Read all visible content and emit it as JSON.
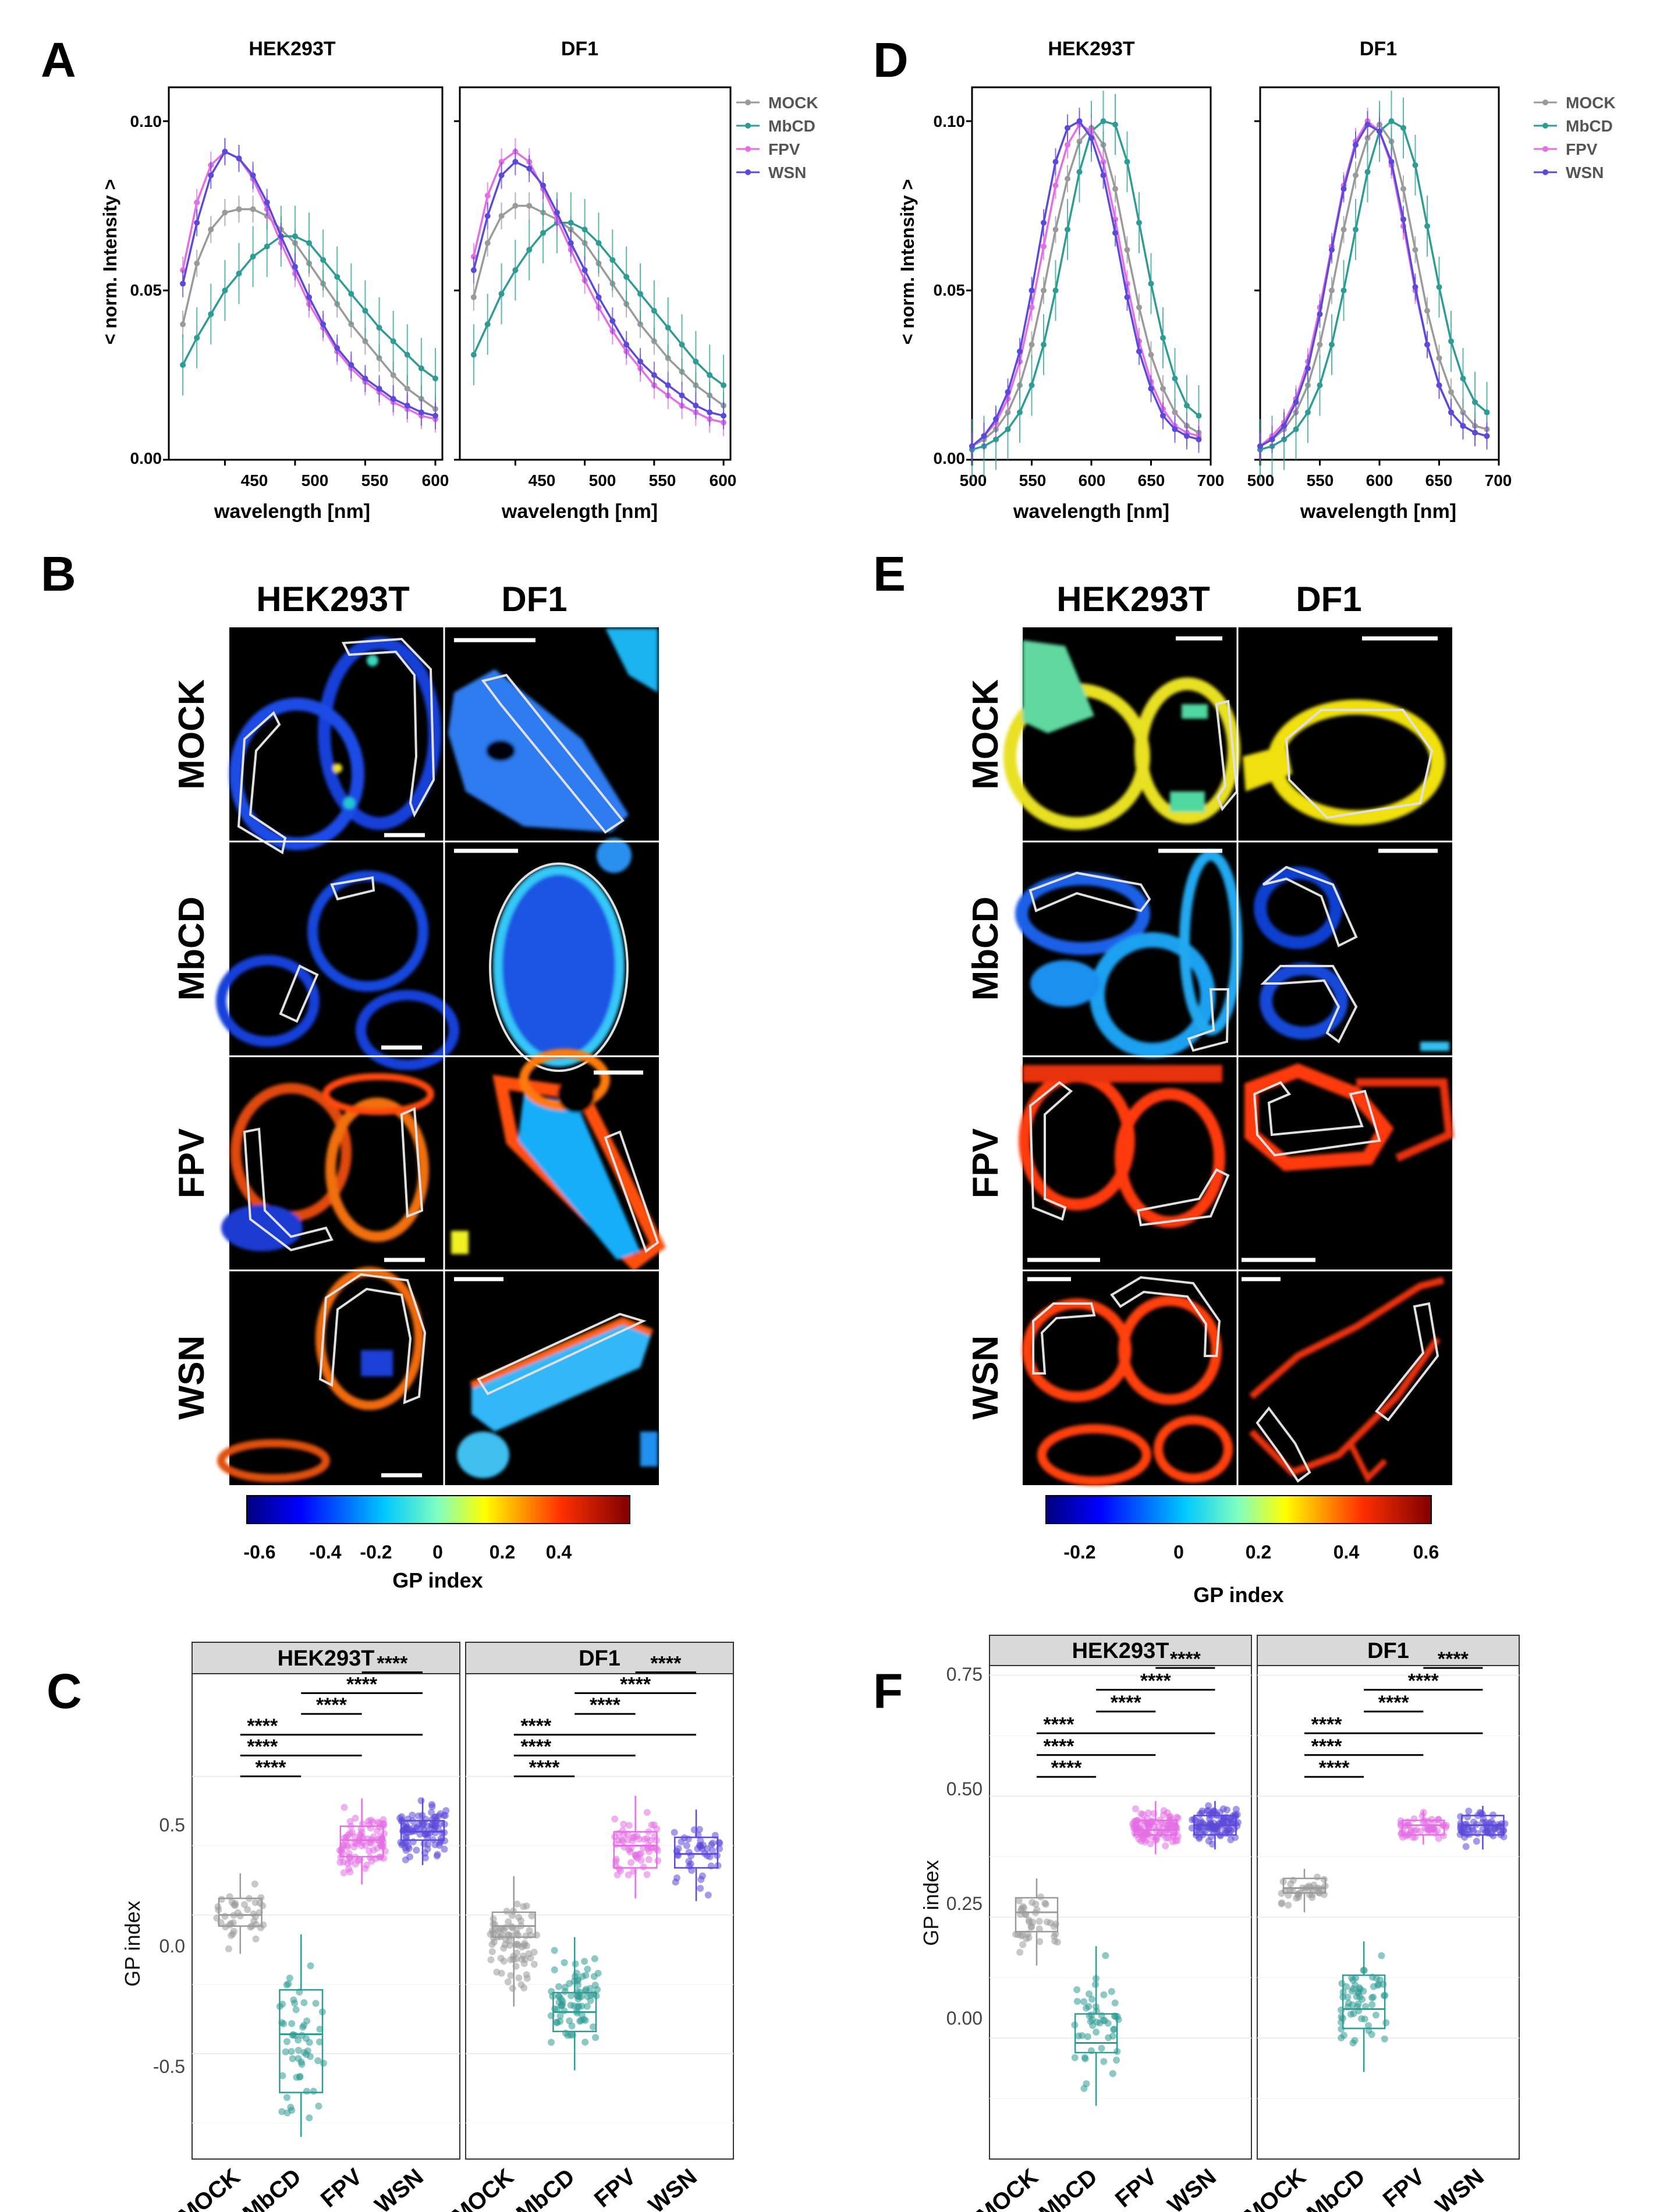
{
  "panels": {
    "A": {
      "letter": "A",
      "ylabel": "< norm. Intensity >",
      "xlabel": "wavelength [nm]",
      "legend": [
        "MOCK",
        "MbCD",
        "FPV",
        "WSN"
      ],
      "titles": [
        "HEK293T",
        "DF1"
      ],
      "xticks": [
        "450",
        "500",
        "550",
        "600"
      ],
      "yticks": [
        "0.00",
        "0.05",
        "0.10"
      ]
    },
    "B": {
      "letter": "B",
      "cols": [
        "HEK293T",
        "DF1"
      ],
      "rows": [
        "MOCK",
        "MbCD",
        "FPV",
        "WSN"
      ],
      "colorbar_ticks": [
        "-0.6",
        "-0.4",
        "-0.2",
        "0",
        "0.2",
        "0.4"
      ],
      "colorbar_label": "GP index"
    },
    "C": {
      "letter": "C",
      "strips": [
        "HEK293T",
        "DF1"
      ],
      "ylabel": "GP index",
      "yticks": [
        "0.5",
        "0.0",
        "-0.5"
      ],
      "xticks": [
        "MOCK",
        "MbCD",
        "FPV",
        "WSN"
      ],
      "sig": "****"
    },
    "D": {
      "letter": "D",
      "ylabel": "< norm. Intensity >",
      "xlabel": "wavelength [nm]",
      "legend": [
        "MOCK",
        "MbCD",
        "FPV",
        "WSN"
      ],
      "titles": [
        "HEK293T",
        "DF1"
      ],
      "xticks": [
        "500",
        "550",
        "600",
        "650",
        "700"
      ],
      "yticks": [
        "0.00",
        "0.05",
        "0.10"
      ]
    },
    "E": {
      "letter": "E",
      "cols": [
        "HEK293T",
        "DF1"
      ],
      "rows": [
        "MOCK",
        "MbCD",
        "FPV",
        "WSN"
      ],
      "colorbar_ticks": [
        "-0.2",
        "0",
        "0.2",
        "0.4",
        "0.6"
      ],
      "colorbar_label": "GP index"
    },
    "F": {
      "letter": "F",
      "strips": [
        "HEK293T",
        "DF1"
      ],
      "ylabel": "GP index",
      "yticks": [
        "0.75",
        "0.50",
        "0.25",
        "0.00"
      ],
      "xticks": [
        "MOCK",
        "MbCD",
        "FPV",
        "WSN"
      ],
      "sig": "****"
    }
  },
  "colors": {
    "MOCK": "#9a9a9a",
    "MbCD": "#2e9b94",
    "FPV": "#e46ee4",
    "WSN": "#5b49d8"
  },
  "chart_data": [
    {
      "id": "A-HEK293T",
      "type": "line",
      "title": "HEK293T",
      "xlabel": "wavelength [nm]",
      "ylabel": "< norm. Intensity >",
      "xlim": [
        410,
        605
      ],
      "ylim": [
        0,
        0.11
      ],
      "x": [
        420,
        430,
        440,
        450,
        460,
        470,
        480,
        490,
        500,
        510,
        520,
        530,
        540,
        550,
        560,
        570,
        580,
        590,
        600
      ],
      "series": [
        {
          "name": "MOCK",
          "values": [
            0.04,
            0.058,
            0.068,
            0.073,
            0.074,
            0.074,
            0.072,
            0.068,
            0.064,
            0.058,
            0.052,
            0.046,
            0.04,
            0.035,
            0.03,
            0.025,
            0.021,
            0.018,
            0.015
          ]
        },
        {
          "name": "MbCD",
          "values": [
            0.028,
            0.036,
            0.043,
            0.05,
            0.055,
            0.06,
            0.063,
            0.066,
            0.066,
            0.064,
            0.059,
            0.054,
            0.049,
            0.044,
            0.039,
            0.035,
            0.031,
            0.027,
            0.024
          ]
        },
        {
          "name": "FPV",
          "values": [
            0.056,
            0.076,
            0.087,
            0.091,
            0.089,
            0.083,
            0.074,
            0.064,
            0.055,
            0.046,
            0.039,
            0.032,
            0.027,
            0.023,
            0.02,
            0.017,
            0.015,
            0.013,
            0.012
          ]
        },
        {
          "name": "WSN",
          "values": [
            0.052,
            0.07,
            0.084,
            0.091,
            0.089,
            0.084,
            0.076,
            0.066,
            0.057,
            0.048,
            0.04,
            0.033,
            0.028,
            0.024,
            0.021,
            0.018,
            0.016,
            0.014,
            0.013
          ]
        }
      ]
    },
    {
      "id": "A-DF1",
      "type": "line",
      "title": "DF1",
      "xlabel": "wavelength [nm]",
      "ylabel": "< norm. Intensity >",
      "xlim": [
        410,
        605
      ],
      "ylim": [
        0,
        0.11
      ],
      "x": [
        420,
        430,
        440,
        450,
        460,
        470,
        480,
        490,
        500,
        510,
        520,
        530,
        540,
        550,
        560,
        570,
        580,
        590,
        600
      ],
      "series": [
        {
          "name": "MOCK",
          "values": [
            0.048,
            0.064,
            0.072,
            0.075,
            0.075,
            0.073,
            0.071,
            0.068,
            0.064,
            0.058,
            0.052,
            0.046,
            0.04,
            0.035,
            0.03,
            0.026,
            0.022,
            0.019,
            0.016
          ]
        },
        {
          "name": "MbCD",
          "values": [
            0.031,
            0.04,
            0.049,
            0.056,
            0.062,
            0.067,
            0.07,
            0.07,
            0.068,
            0.064,
            0.059,
            0.054,
            0.049,
            0.044,
            0.039,
            0.034,
            0.029,
            0.025,
            0.022
          ]
        },
        {
          "name": "FPV",
          "values": [
            0.06,
            0.078,
            0.088,
            0.091,
            0.088,
            0.08,
            0.071,
            0.062,
            0.053,
            0.045,
            0.038,
            0.032,
            0.027,
            0.022,
            0.019,
            0.016,
            0.014,
            0.012,
            0.011
          ]
        },
        {
          "name": "WSN",
          "values": [
            0.056,
            0.072,
            0.084,
            0.088,
            0.086,
            0.081,
            0.073,
            0.064,
            0.056,
            0.048,
            0.041,
            0.034,
            0.029,
            0.025,
            0.022,
            0.019,
            0.016,
            0.014,
            0.013
          ]
        }
      ]
    },
    {
      "id": "D-HEK293T",
      "type": "line",
      "title": "HEK293T",
      "xlabel": "wavelength [nm]",
      "ylabel": "< norm. Intensity >",
      "xlim": [
        500,
        700
      ],
      "ylim": [
        0,
        0.11
      ],
      "x": [
        500,
        510,
        520,
        530,
        540,
        550,
        560,
        570,
        580,
        590,
        600,
        610,
        620,
        630,
        640,
        650,
        660,
        670,
        680,
        690
      ],
      "series": [
        {
          "name": "MOCK",
          "values": [
            0.004,
            0.006,
            0.009,
            0.014,
            0.022,
            0.034,
            0.05,
            0.068,
            0.083,
            0.094,
            0.098,
            0.093,
            0.08,
            0.062,
            0.045,
            0.031,
            0.021,
            0.014,
            0.01,
            0.008
          ]
        },
        {
          "name": "MbCD",
          "values": [
            0.003,
            0.004,
            0.006,
            0.009,
            0.014,
            0.022,
            0.034,
            0.05,
            0.068,
            0.085,
            0.097,
            0.1,
            0.099,
            0.088,
            0.07,
            0.052,
            0.036,
            0.024,
            0.016,
            0.013
          ]
        },
        {
          "name": "FPV",
          "values": [
            0.004,
            0.007,
            0.011,
            0.018,
            0.029,
            0.045,
            0.063,
            0.081,
            0.093,
            0.099,
            0.097,
            0.088,
            0.071,
            0.052,
            0.035,
            0.023,
            0.015,
            0.01,
            0.008,
            0.007
          ]
        },
        {
          "name": "WSN",
          "values": [
            0.004,
            0.007,
            0.012,
            0.02,
            0.032,
            0.05,
            0.07,
            0.088,
            0.098,
            0.1,
            0.095,
            0.084,
            0.067,
            0.048,
            0.032,
            0.021,
            0.013,
            0.009,
            0.007,
            0.006
          ]
        }
      ]
    },
    {
      "id": "D-DF1",
      "type": "line",
      "title": "DF1",
      "xlabel": "wavelength [nm]",
      "ylabel": "< norm. Intensity >",
      "xlim": [
        500,
        700
      ],
      "ylim": [
        0,
        0.11
      ],
      "x": [
        500,
        510,
        520,
        530,
        540,
        550,
        560,
        570,
        580,
        590,
        600,
        610,
        620,
        630,
        640,
        650,
        660,
        670,
        680,
        690
      ],
      "series": [
        {
          "name": "MOCK",
          "values": [
            0.004,
            0.006,
            0.009,
            0.014,
            0.022,
            0.034,
            0.05,
            0.068,
            0.084,
            0.095,
            0.099,
            0.094,
            0.08,
            0.062,
            0.044,
            0.03,
            0.02,
            0.014,
            0.01,
            0.009
          ]
        },
        {
          "name": "MbCD",
          "values": [
            0.003,
            0.004,
            0.006,
            0.009,
            0.014,
            0.022,
            0.034,
            0.05,
            0.068,
            0.085,
            0.097,
            0.1,
            0.098,
            0.087,
            0.069,
            0.051,
            0.035,
            0.024,
            0.017,
            0.014
          ]
        },
        {
          "name": "FPV",
          "values": [
            0.004,
            0.007,
            0.011,
            0.018,
            0.029,
            0.045,
            0.063,
            0.081,
            0.094,
            0.1,
            0.097,
            0.087,
            0.069,
            0.05,
            0.034,
            0.022,
            0.014,
            0.01,
            0.008,
            0.007
          ]
        },
        {
          "name": "WSN",
          "values": [
            0.004,
            0.006,
            0.01,
            0.017,
            0.027,
            0.043,
            0.062,
            0.08,
            0.093,
            0.099,
            0.097,
            0.088,
            0.071,
            0.051,
            0.034,
            0.022,
            0.014,
            0.01,
            0.008,
            0.007
          ]
        }
      ]
    },
    {
      "id": "C-HEK293T",
      "type": "box",
      "title": "HEK293T",
      "ylabel": "GP index",
      "ylim": [
        -0.88,
        0.87
      ],
      "categories": [
        "MOCK",
        "MbCD",
        "FPV",
        "WSN"
      ],
      "boxes": [
        {
          "q1": -0.04,
          "median": 0.0,
          "q3": 0.06,
          "wlo": -0.14,
          "whi": 0.15,
          "n": 40
        },
        {
          "q1": -0.64,
          "median": -0.43,
          "q3": -0.27,
          "wlo": -0.8,
          "whi": -0.07,
          "n": 55
        },
        {
          "q1": 0.21,
          "median": 0.27,
          "q3": 0.32,
          "wlo": 0.11,
          "whi": 0.42,
          "n": 90
        },
        {
          "q1": 0.27,
          "median": 0.3,
          "q3": 0.34,
          "wlo": 0.18,
          "whi": 0.42,
          "n": 95
        }
      ],
      "significance": [
        [
          "MOCK",
          "MbCD"
        ],
        [
          "MOCK",
          "FPV"
        ],
        [
          "MOCK",
          "WSN"
        ],
        [
          "MbCD",
          "FPV"
        ],
        [
          "MbCD",
          "WSN"
        ],
        [
          "FPV",
          "WSN"
        ]
      ]
    },
    {
      "id": "C-DF1",
      "type": "box",
      "title": "DF1",
      "ylabel": "GP index",
      "ylim": [
        -0.88,
        0.87
      ],
      "categories": [
        "MOCK",
        "MbCD",
        "FPV",
        "WSN"
      ],
      "boxes": [
        {
          "q1": -0.08,
          "median": -0.04,
          "q3": 0.01,
          "wlo": -0.33,
          "whi": 0.14,
          "n": 80
        },
        {
          "q1": -0.42,
          "median": -0.35,
          "q3": -0.28,
          "wlo": -0.56,
          "whi": -0.08,
          "n": 80
        },
        {
          "q1": 0.17,
          "median": 0.25,
          "q3": 0.3,
          "wlo": 0.06,
          "whi": 0.43,
          "n": 60
        },
        {
          "q1": 0.17,
          "median": 0.22,
          "q3": 0.28,
          "wlo": 0.05,
          "whi": 0.38,
          "n": 45
        }
      ],
      "significance": [
        [
          "MOCK",
          "MbCD"
        ],
        [
          "MOCK",
          "FPV"
        ],
        [
          "MOCK",
          "WSN"
        ],
        [
          "MbCD",
          "FPV"
        ],
        [
          "MbCD",
          "WSN"
        ],
        [
          "FPV",
          "WSN"
        ]
      ]
    },
    {
      "id": "F-HEK293T",
      "type": "box",
      "title": "HEK293T",
      "ylabel": "GP index",
      "ylim": [
        -0.25,
        0.77
      ],
      "categories": [
        "MOCK",
        "MbCD",
        "FPV",
        "WSN"
      ],
      "boxes": [
        {
          "q1": 0.22,
          "median": 0.26,
          "q3": 0.29,
          "wlo": 0.15,
          "whi": 0.33,
          "n": 40
        },
        {
          "q1": -0.03,
          "median": -0.01,
          "q3": 0.05,
          "wlo": -0.14,
          "whi": 0.19,
          "n": 50
        },
        {
          "q1": 0.42,
          "median": 0.43,
          "q3": 0.45,
          "wlo": 0.38,
          "whi": 0.49,
          "n": 100
        },
        {
          "q1": 0.42,
          "median": 0.44,
          "q3": 0.46,
          "wlo": 0.39,
          "whi": 0.49,
          "n": 100
        }
      ],
      "significance": [
        [
          "MOCK",
          "MbCD"
        ],
        [
          "MOCK",
          "FPV"
        ],
        [
          "MOCK",
          "WSN"
        ],
        [
          "MbCD",
          "FPV"
        ],
        [
          "MbCD",
          "WSN"
        ],
        [
          "FPV",
          "WSN"
        ]
      ]
    },
    {
      "id": "F-DF1",
      "type": "box",
      "title": "DF1",
      "ylabel": "GP index",
      "ylim": [
        -0.25,
        0.77
      ],
      "categories": [
        "MOCK",
        "MbCD",
        "FPV",
        "WSN"
      ],
      "boxes": [
        {
          "q1": 0.3,
          "median": 0.31,
          "q3": 0.33,
          "wlo": 0.26,
          "whi": 0.35,
          "n": 35
        },
        {
          "q1": 0.02,
          "median": 0.06,
          "q3": 0.13,
          "wlo": -0.07,
          "whi": 0.2,
          "n": 60
        },
        {
          "q1": 0.42,
          "median": 0.44,
          "q3": 0.45,
          "wlo": 0.4,
          "whi": 0.47,
          "n": 50
        },
        {
          "q1": 0.42,
          "median": 0.44,
          "q3": 0.46,
          "wlo": 0.39,
          "whi": 0.48,
          "n": 60
        }
      ],
      "significance": [
        [
          "MOCK",
          "MbCD"
        ],
        [
          "MOCK",
          "FPV"
        ],
        [
          "MOCK",
          "WSN"
        ],
        [
          "MbCD",
          "FPV"
        ],
        [
          "MbCD",
          "WSN"
        ],
        [
          "FPV",
          "WSN"
        ]
      ]
    }
  ]
}
